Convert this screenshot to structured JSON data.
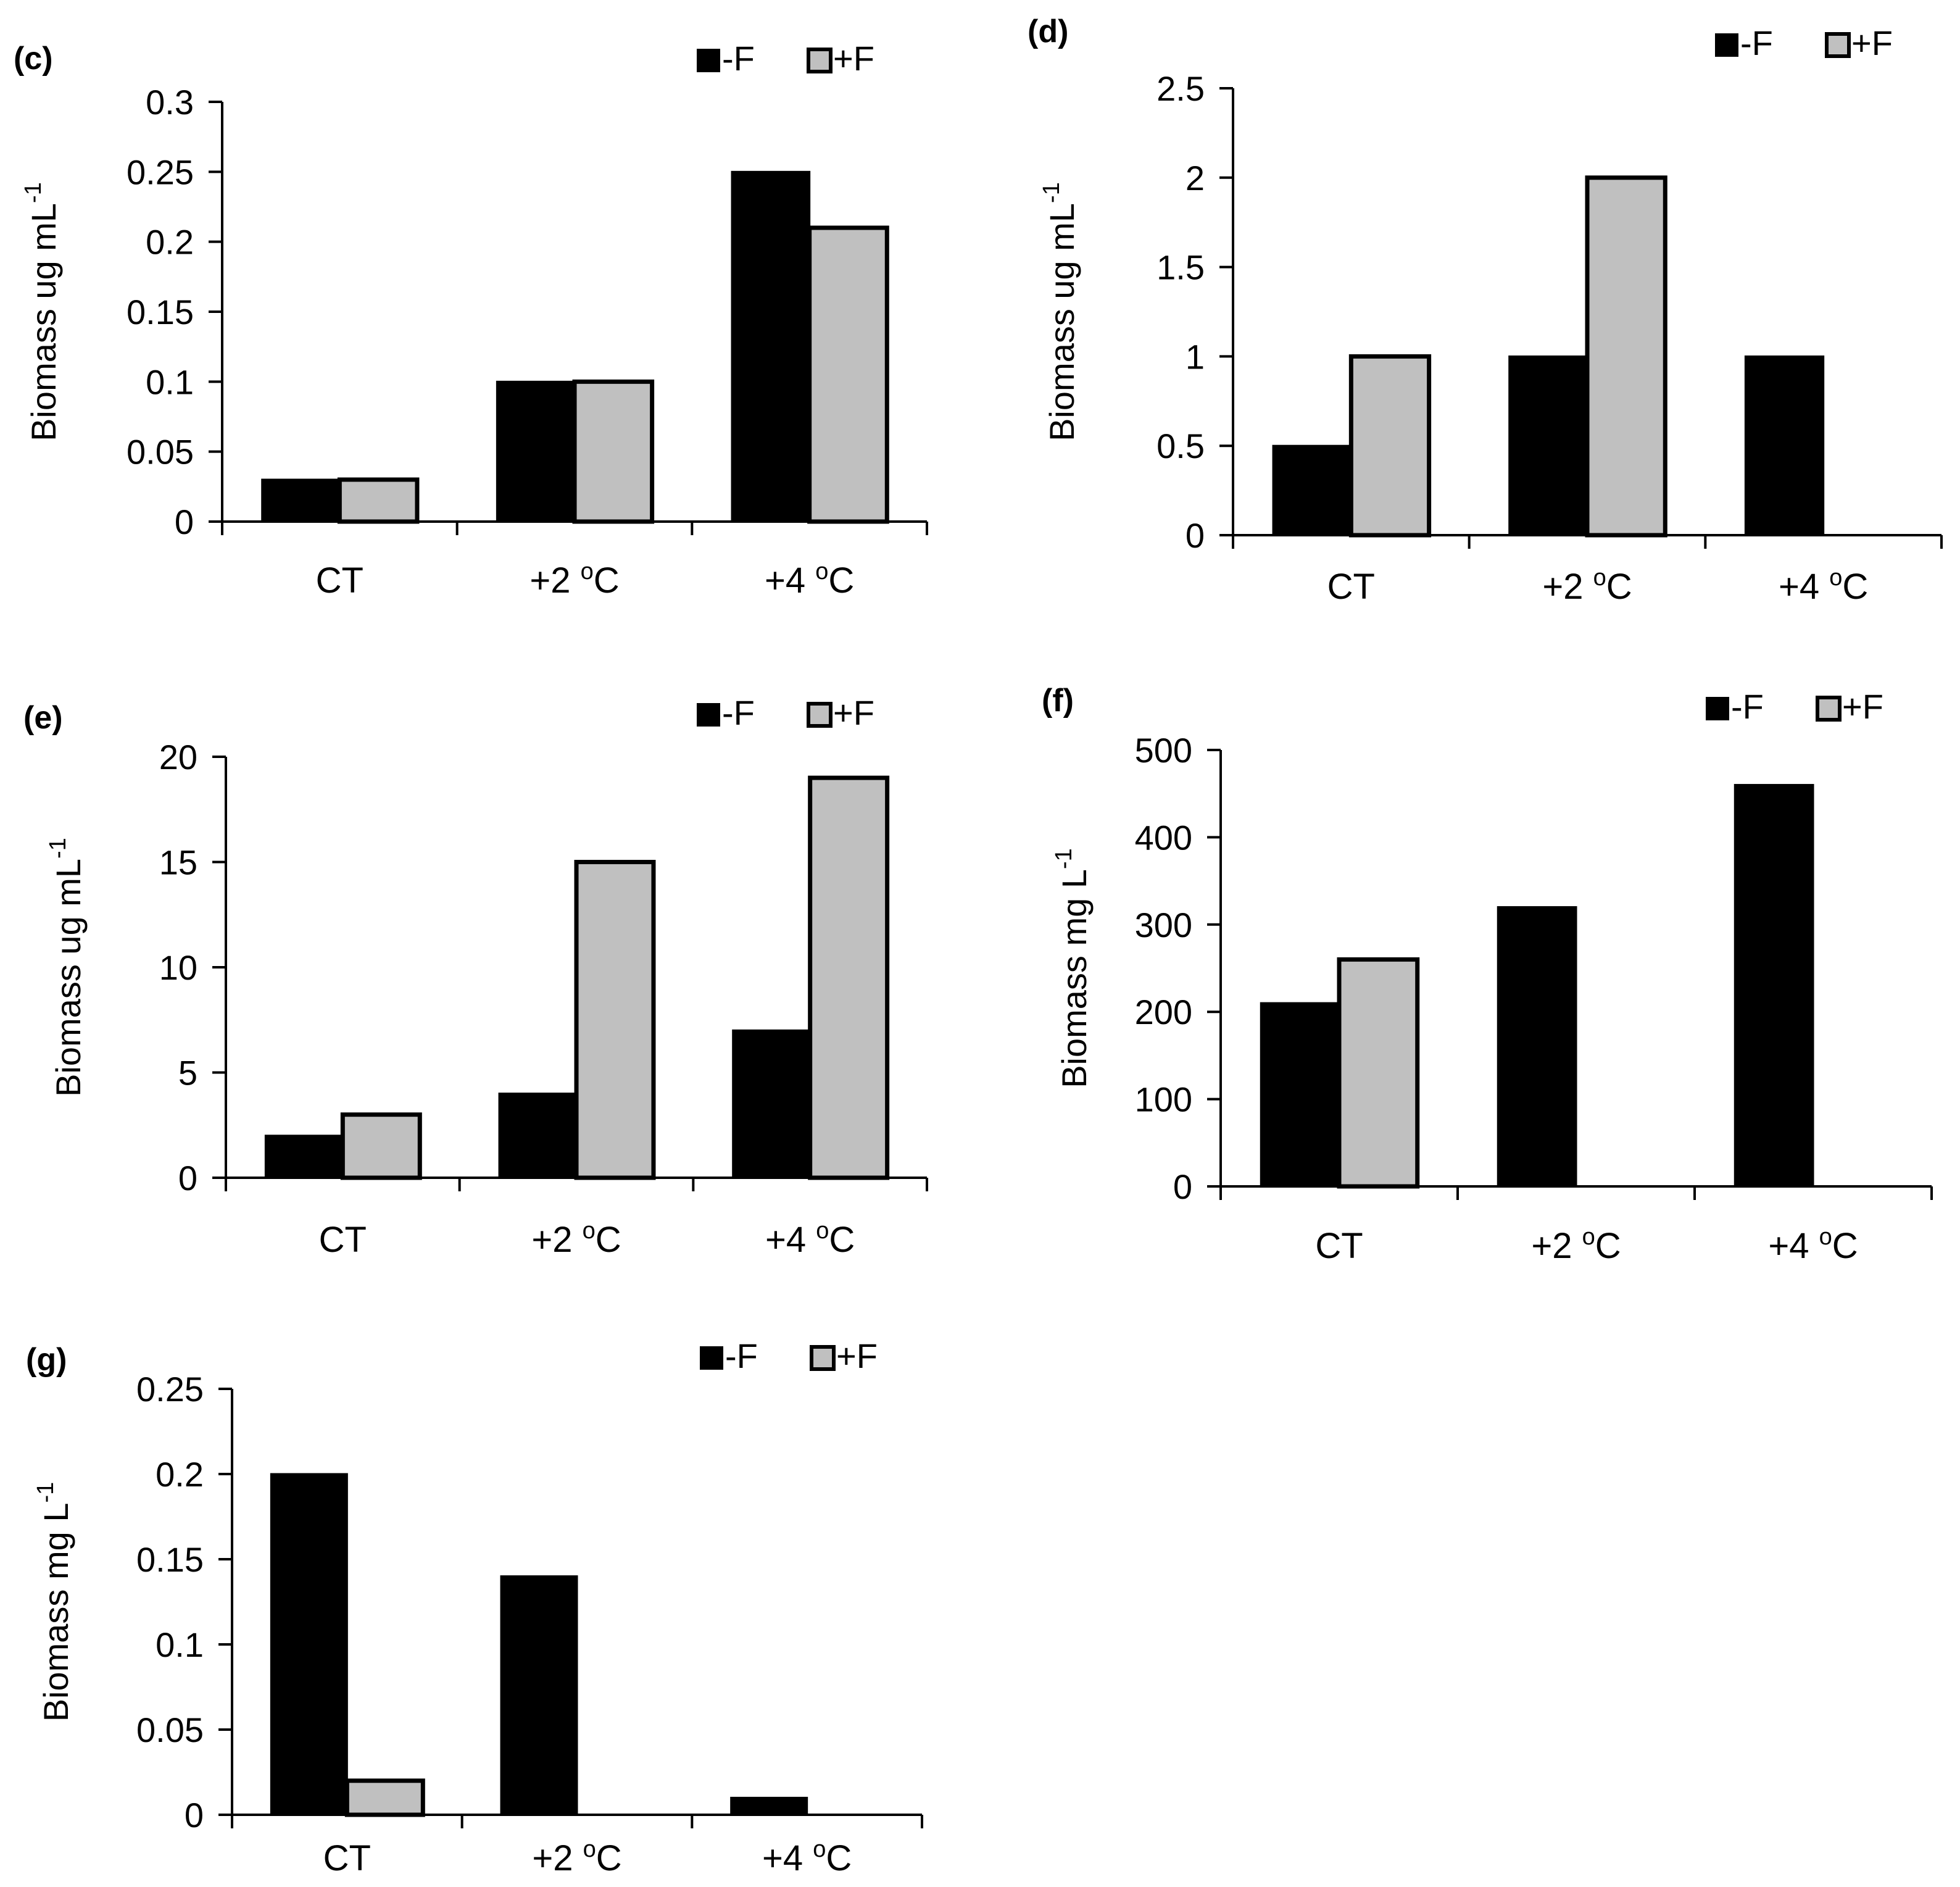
{
  "colors": {
    "minus_f": "#000000",
    "plus_f": "#c0c0c0",
    "axis": "#000000",
    "outline": "#000000"
  },
  "chart_data": [
    {
      "panel": "(c)",
      "type": "bar",
      "categories": [
        "CT",
        "+2 oC",
        "+4 oC"
      ],
      "series": [
        {
          "name": "-F",
          "values": [
            0.03,
            0.1,
            0.25
          ]
        },
        {
          "name": "+F",
          "values": [
            0.03,
            0.1,
            0.21
          ]
        }
      ],
      "ylabel": "Biomass ug mL-1",
      "ylabel_unit": "Biomass ug mL",
      "ylabel_exp": "-1",
      "ylim": [
        0,
        0.3
      ],
      "yticks": [
        "0",
        "0.05",
        "0.1",
        "0.15",
        "0.2",
        "0.25",
        "0.3"
      ],
      "ytick_values": [
        0,
        0.05,
        0.1,
        0.15,
        0.2,
        0.25,
        0.3
      ],
      "legend": "top-right",
      "grid": false
    },
    {
      "panel": "(d)",
      "type": "bar",
      "categories": [
        "CT",
        "+2 oC",
        "+4 oC"
      ],
      "series": [
        {
          "name": "-F",
          "values": [
            0.5,
            1,
            1
          ]
        },
        {
          "name": "+F",
          "values": [
            1,
            2,
            0
          ]
        }
      ],
      "ylabel": "Biomass ug mL-1",
      "ylabel_unit": "Biomass ug mL",
      "ylabel_exp": "-1",
      "ylim": [
        0,
        2.5
      ],
      "yticks": [
        "0",
        "0.5",
        "1",
        "1.5",
        "2",
        "2.5"
      ],
      "ytick_values": [
        0,
        0.5,
        1,
        1.5,
        2,
        2.5
      ],
      "legend": "top-right",
      "grid": false
    },
    {
      "panel": "(e)",
      "type": "bar",
      "categories": [
        "CT",
        "+2 oC",
        "+4 oC"
      ],
      "series": [
        {
          "name": "-F",
          "values": [
            2,
            4,
            7
          ]
        },
        {
          "name": "+F",
          "values": [
            3,
            15,
            19
          ]
        }
      ],
      "ylabel": "Biomass ug mL-1",
      "ylabel_unit": "Biomass ug mL",
      "ylabel_exp": "-1",
      "ylim": [
        0,
        20
      ],
      "yticks": [
        "0",
        "5",
        "10",
        "15",
        "20"
      ],
      "ytick_values": [
        0,
        5,
        10,
        15,
        20
      ],
      "legend": "top-right",
      "grid": false
    },
    {
      "panel": "(f)",
      "type": "bar",
      "categories": [
        "CT",
        "+2 oC",
        "+4 oC"
      ],
      "series": [
        {
          "name": "-F",
          "values": [
            210,
            320,
            460
          ]
        },
        {
          "name": "+F",
          "values": [
            260,
            0,
            0
          ]
        }
      ],
      "ylabel": "Biomass mg L-1",
      "ylabel_unit": "Biomass mg L",
      "ylabel_exp": "-1",
      "ylim": [
        0,
        500
      ],
      "yticks": [
        "0",
        "100",
        "200",
        "300",
        "400",
        "500"
      ],
      "ytick_values": [
        0,
        100,
        200,
        300,
        400,
        500
      ],
      "legend": "top-right",
      "grid": false
    },
    {
      "panel": "(g)",
      "type": "bar",
      "categories": [
        "CT",
        "+2 oC",
        "+4 oC"
      ],
      "series": [
        {
          "name": "-F",
          "values": [
            0.2,
            0.14,
            0.01
          ]
        },
        {
          "name": "+F",
          "values": [
            0.02,
            0,
            0
          ]
        }
      ],
      "ylabel": "Biomass mg L-1",
      "ylabel_unit": "Biomass mg L",
      "ylabel_exp": "-1",
      "ylim": [
        0,
        0.25
      ],
      "yticks": [
        "0",
        "0.05",
        "0.1",
        "0.15",
        "0.2",
        "0.25"
      ],
      "ytick_values": [
        0,
        0.05,
        0.1,
        0.15,
        0.2,
        0.25
      ],
      "legend": "top-right",
      "grid": false
    }
  ]
}
